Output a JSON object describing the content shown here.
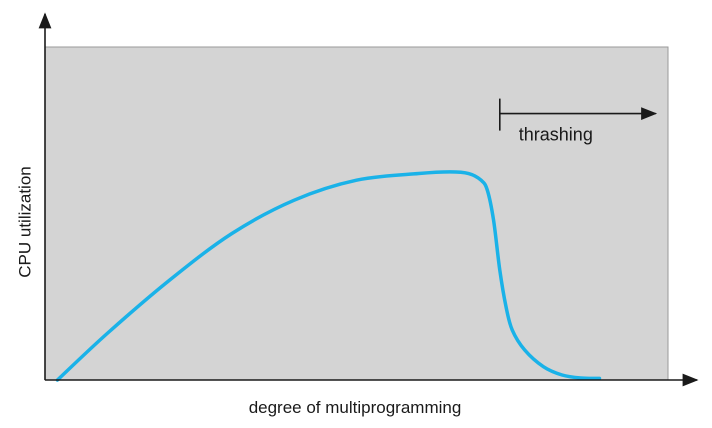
{
  "chart_data": {
    "type": "line",
    "title": "",
    "xlabel": "degree of multiprogramming",
    "ylabel": "CPU utilization",
    "xlim": [
      0,
      100
    ],
    "ylim": [
      0,
      100
    ],
    "grid": false,
    "plot_background": "#d4d4d4",
    "axis_color": "#1a1a1a",
    "series": [
      {
        "color": "#1ab2e8",
        "x": [
          2,
          10,
          20,
          30,
          40,
          50,
          60,
          65,
          68,
          70,
          71,
          72,
          73,
          74,
          75,
          77,
          80,
          83,
          86,
          89
        ],
        "y": [
          0,
          14,
          30,
          44,
          54,
          60,
          62,
          62.5,
          62,
          60,
          57,
          48,
          33,
          22,
          15,
          9,
          4,
          1.5,
          0.6,
          0.5
        ]
      }
    ],
    "annotations": [
      {
        "text": "thrashing",
        "arrow_from_x": 73,
        "arrow_to_x": 98,
        "y": 80
      }
    ]
  }
}
